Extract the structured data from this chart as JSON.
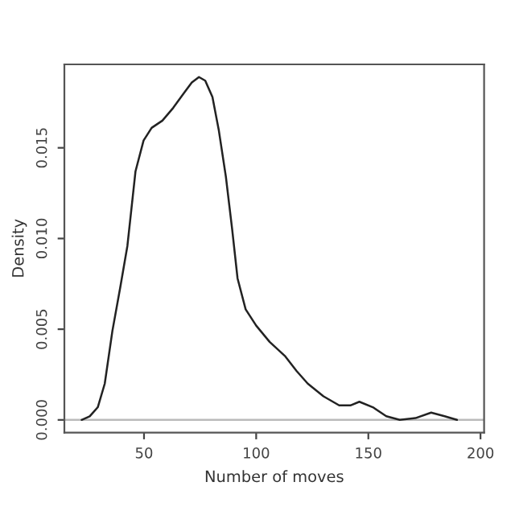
{
  "chart_data": {
    "type": "line",
    "xlabel": "Number of moves",
    "ylabel": "Density",
    "xlim": [
      14.5,
      201.6
    ],
    "ylim": [
      -0.0007,
      0.0196
    ],
    "xticks": [
      50,
      100,
      150,
      200
    ],
    "yticks": [
      {
        "value": 0,
        "label": "0.000"
      },
      {
        "value": 0.005,
        "label": "0.005"
      },
      {
        "value": 0.01,
        "label": "0.010"
      },
      {
        "value": 0.015,
        "label": "0.015"
      }
    ],
    "grid": false,
    "ref_lines": [
      {
        "axis": "y",
        "value": 0,
        "label": null,
        "color": "#bbbbbb"
      }
    ],
    "series": [
      {
        "color": "#222222",
        "x": [
          22.2,
          25.8,
          29.4,
          32.5,
          35.9,
          39.4,
          42.6,
          46.2,
          49.8,
          53.4,
          58.2,
          63,
          67.7,
          71.3,
          74.5,
          77.3,
          80.5,
          83.3,
          86.5,
          89.3,
          91.7,
          95.3,
          100,
          106,
          113,
          118,
          123,
          130,
          137,
          142,
          146,
          152,
          158,
          164,
          171,
          178,
          184,
          189.5
        ],
        "values": [
          0.0,
          0.0002,
          0.0007,
          0.002,
          0.0049,
          0.0073,
          0.0096,
          0.0137,
          0.0154,
          0.0161,
          0.0165,
          0.0172,
          0.018,
          0.0186,
          0.0189,
          0.0187,
          0.0178,
          0.016,
          0.0134,
          0.0105,
          0.0078,
          0.0061,
          0.0052,
          0.0043,
          0.0035,
          0.0027,
          0.002,
          0.0013,
          0.0008,
          0.0008,
          0.001,
          0.0007,
          0.0002,
          0.0,
          0.0001,
          0.0004,
          0.0002,
          0.0
        ]
      }
    ]
  }
}
